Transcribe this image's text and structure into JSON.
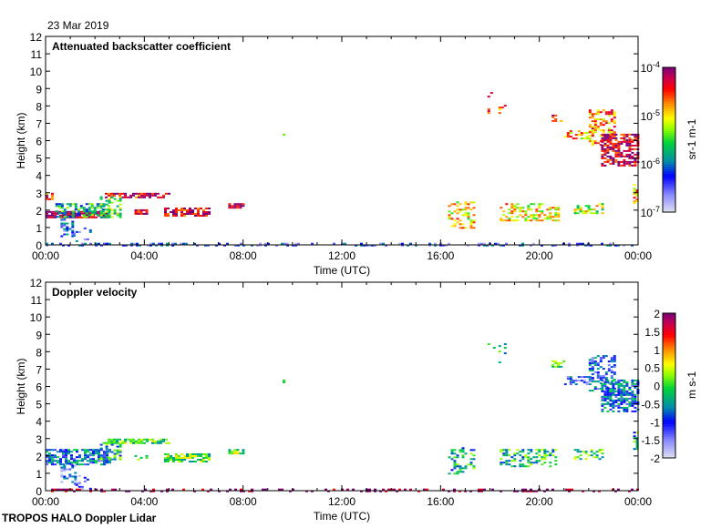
{
  "header": {
    "date": "23 Mar 2019"
  },
  "footer": {
    "instrument": "TROPOS HALO Doppler Lidar"
  },
  "chart_data": [
    {
      "type": "heatmap",
      "title": "Attenuated backscatter coefficient",
      "xlabel": "Time (UTC)",
      "ylabel": "Height (km)",
      "xlim": [
        0,
        24
      ],
      "ylim": [
        0,
        12
      ],
      "xticks": [
        "00:00",
        "04:00",
        "08:00",
        "12:00",
        "16:00",
        "20:00",
        "00:00"
      ],
      "yticks": [
        "0",
        "1",
        "2",
        "3",
        "4",
        "5",
        "6",
        "7",
        "8",
        "9",
        "10",
        "11",
        "12"
      ],
      "colorbar": {
        "label": "sr-1 m-1",
        "scale": "log",
        "range": [
          -7,
          -4
        ],
        "ticks": [
          "10-7",
          "10-6",
          "10-5",
          "10-4"
        ]
      },
      "layers": [
        {
          "t": [
            0,
            24
          ],
          "h": [
            0,
            0.12
          ],
          "v": -6.3,
          "d": 0.35
        },
        {
          "t": [
            0,
            2.5
          ],
          "h": [
            1.55,
            1.95
          ],
          "v": -4.1,
          "d": 0.85
        },
        {
          "t": [
            0,
            0.3
          ],
          "h": [
            2.6,
            3.0
          ],
          "v": -4.6,
          "d": 0.7
        },
        {
          "t": [
            0.4,
            2.6
          ],
          "h": [
            1.6,
            2.4
          ],
          "v": -5.7,
          "d": 0.55
        },
        {
          "t": [
            0.6,
            1.1
          ],
          "h": [
            0.5,
            1.6
          ],
          "v": -6.2,
          "d": 0.45
        },
        {
          "t": [
            1.1,
            1.8
          ],
          "h": [
            0.2,
            1.0
          ],
          "v": -6.4,
          "d": 0.2
        },
        {
          "t": [
            2.4,
            5.0
          ],
          "h": [
            2.75,
            3.0
          ],
          "v": -4.3,
          "d": 0.7
        },
        {
          "t": [
            2.2,
            3.0
          ],
          "h": [
            1.6,
            2.8
          ],
          "v": -5.4,
          "d": 0.5
        },
        {
          "t": [
            3.6,
            4.1
          ],
          "h": [
            1.75,
            2.05
          ],
          "v": -4.2,
          "d": 0.8
        },
        {
          "t": [
            4.8,
            6.6
          ],
          "h": [
            1.7,
            2.15
          ],
          "v": -4.3,
          "d": 0.75
        },
        {
          "t": [
            7.4,
            8.0
          ],
          "h": [
            2.15,
            2.4
          ],
          "v": -4.2,
          "d": 0.85
        },
        {
          "t": [
            9.6,
            9.7
          ],
          "h": [
            6.2,
            6.4
          ],
          "v": -5.5,
          "d": 0.6
        },
        {
          "t": [
            16.3,
            17.4
          ],
          "h": [
            1.0,
            2.5
          ],
          "v": -5.0,
          "d": 0.4
        },
        {
          "t": [
            18.4,
            20.8
          ],
          "h": [
            1.4,
            2.4
          ],
          "v": -5.0,
          "d": 0.45
        },
        {
          "t": [
            21.4,
            22.6
          ],
          "h": [
            1.8,
            2.4
          ],
          "v": -5.2,
          "d": 0.45
        },
        {
          "t": [
            17.9,
            18.6
          ],
          "h": [
            7.4,
            8.8
          ],
          "v": -4.6,
          "d": 0.12
        },
        {
          "t": [
            20.5,
            21.0
          ],
          "h": [
            7.1,
            7.5
          ],
          "v": -4.5,
          "d": 0.5
        },
        {
          "t": [
            21.0,
            22.0
          ],
          "h": [
            6.1,
            6.6
          ],
          "v": -4.9,
          "d": 0.5
        },
        {
          "t": [
            22.0,
            23.0
          ],
          "h": [
            5.8,
            7.8
          ],
          "v": -4.7,
          "d": 0.45
        },
        {
          "t": [
            22.5,
            24.0
          ],
          "h": [
            4.6,
            6.4
          ],
          "v": -4.2,
          "d": 0.65
        },
        {
          "t": [
            23.8,
            24.0
          ],
          "h": [
            2.4,
            3.5
          ],
          "v": -4.8,
          "d": 0.6
        }
      ]
    },
    {
      "type": "heatmap",
      "title": "Doppler velocity",
      "xlabel": "Time (UTC)",
      "ylabel": "Height (km)",
      "xlim": [
        0,
        24
      ],
      "ylim": [
        0,
        12
      ],
      "xticks": [
        "00:00",
        "04:00",
        "08:00",
        "12:00",
        "16:00",
        "20:00",
        "00:00"
      ],
      "yticks": [
        "0",
        "1",
        "2",
        "3",
        "4",
        "5",
        "6",
        "7",
        "8",
        "9",
        "10",
        "11",
        "12"
      ],
      "colorbar": {
        "label": "m s-1",
        "scale": "linear",
        "range": [
          -2,
          2
        ],
        "ticks": [
          "-2",
          "-1.5",
          "-1",
          "-0.5",
          "0",
          "0.5",
          "1",
          "1.5",
          "2"
        ]
      },
      "layers": [
        {
          "t": [
            0,
            24
          ],
          "h": [
            0,
            0.12
          ],
          "v": 2.0,
          "d": 0.3
        },
        {
          "t": [
            0,
            2.6
          ],
          "h": [
            1.5,
            2.4
          ],
          "v": -0.8,
          "d": 0.6
        },
        {
          "t": [
            0.6,
            1.2
          ],
          "h": [
            0.4,
            1.6
          ],
          "v": -1.2,
          "d": 0.5
        },
        {
          "t": [
            1.1,
            1.8
          ],
          "h": [
            0.1,
            0.9
          ],
          "v": -1.6,
          "d": 0.2
        },
        {
          "t": [
            2.4,
            5.0
          ],
          "h": [
            2.75,
            3.0
          ],
          "v": 0.0,
          "d": 0.65
        },
        {
          "t": [
            2.2,
            3.0
          ],
          "h": [
            1.8,
            2.8
          ],
          "v": -0.2,
          "d": 0.5
        },
        {
          "t": [
            3.6,
            4.1
          ],
          "h": [
            1.75,
            2.05
          ],
          "v": 0.1,
          "d": 0.7
        },
        {
          "t": [
            4.8,
            6.6
          ],
          "h": [
            1.7,
            2.15
          ],
          "v": 0.1,
          "d": 0.7
        },
        {
          "t": [
            7.4,
            8.0
          ],
          "h": [
            2.15,
            2.4
          ],
          "v": 0.1,
          "d": 0.8
        },
        {
          "t": [
            9.6,
            9.7
          ],
          "h": [
            6.2,
            6.4
          ],
          "v": -0.5,
          "d": 0.6
        },
        {
          "t": [
            16.3,
            17.4
          ],
          "h": [
            1.0,
            2.5
          ],
          "v": -0.3,
          "d": 0.4
        },
        {
          "t": [
            18.4,
            20.8
          ],
          "h": [
            1.4,
            2.4
          ],
          "v": -0.2,
          "d": 0.45
        },
        {
          "t": [
            21.4,
            22.6
          ],
          "h": [
            1.8,
            2.4
          ],
          "v": -0.1,
          "d": 0.45
        },
        {
          "t": [
            17.9,
            18.6
          ],
          "h": [
            7.4,
            8.8
          ],
          "v": -0.4,
          "d": 0.12
        },
        {
          "t": [
            20.5,
            21.0
          ],
          "h": [
            7.1,
            7.5
          ],
          "v": 0.1,
          "d": 0.5
        },
        {
          "t": [
            21.0,
            22.0
          ],
          "h": [
            6.1,
            6.6
          ],
          "v": -1.0,
          "d": 0.5
        },
        {
          "t": [
            22.0,
            23.0
          ],
          "h": [
            5.8,
            7.8
          ],
          "v": -0.9,
          "d": 0.45
        },
        {
          "t": [
            22.5,
            24.0
          ],
          "h": [
            4.6,
            6.4
          ],
          "v": -0.7,
          "d": 0.65
        },
        {
          "t": [
            23.8,
            24.0
          ],
          "h": [
            2.4,
            3.5
          ],
          "v": -0.3,
          "d": 0.6
        }
      ]
    }
  ]
}
